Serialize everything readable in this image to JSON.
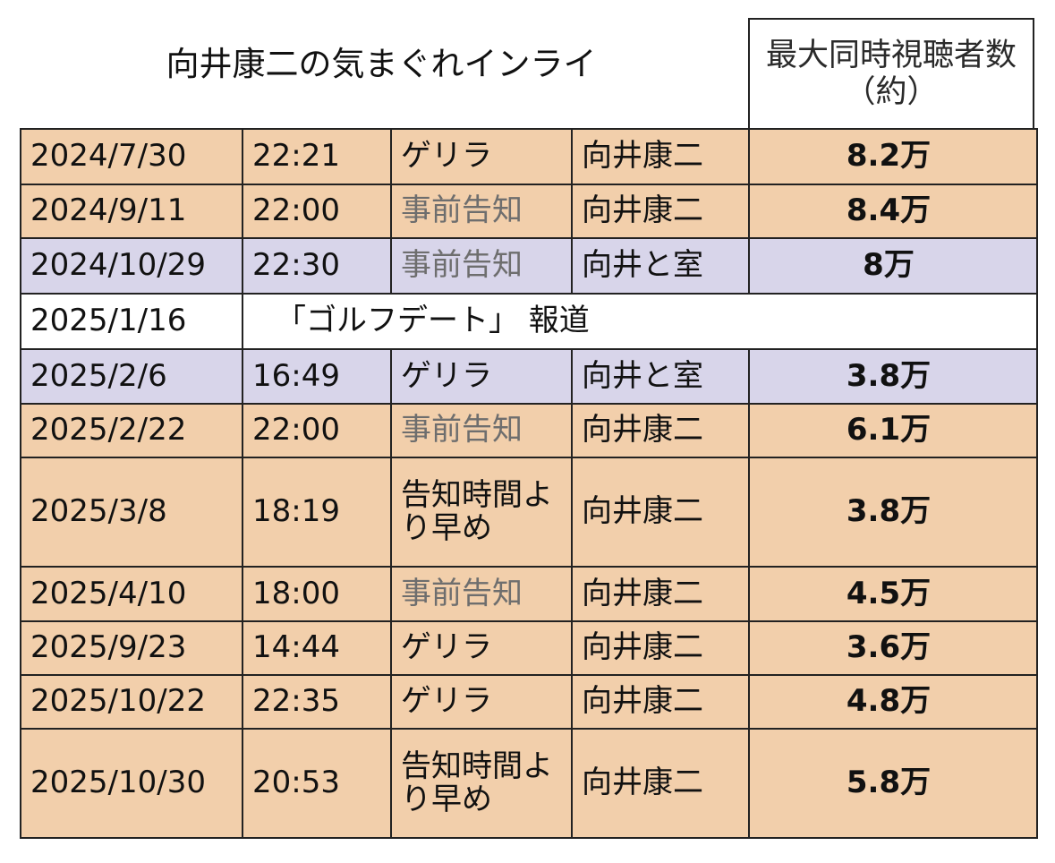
{
  "title": "向井康二の気まぐれインライ",
  "column_header": {
    "line1": "最大同時視聴者数",
    "line2": "（約）"
  },
  "colors": {
    "orange": "#f2cfab",
    "lavender": "#d8d5ea",
    "white": "#ffffff",
    "gray_text": "#6e6e6e"
  },
  "rows": [
    {
      "date": "2024/7/30",
      "time": "22:21",
      "type": "ゲリラ",
      "who": "向井康二",
      "viewers": "8.2万",
      "bg": "orange"
    },
    {
      "date": "2024/9/11",
      "time": "22:00",
      "type": "事前告知",
      "who": "向井康二",
      "viewers": "8.4万",
      "bg": "orange"
    },
    {
      "date": "2024/10/29",
      "time": "22:30",
      "type": "事前告知",
      "who": "向井と室",
      "viewers": "8万",
      "bg": "lavender"
    },
    {
      "date": "2025/1/16",
      "note": "「ゴルフデート」 報道",
      "bg": "white"
    },
    {
      "date": "2025/2/6",
      "time": "16:49",
      "type": "ゲリラ",
      "who": "向井と室",
      "viewers": "3.8万",
      "bg": "lavender"
    },
    {
      "date": "2025/2/22",
      "time": "22:00",
      "type": "事前告知",
      "who": "向井康二",
      "viewers": "6.1万",
      "bg": "orange"
    },
    {
      "date": "2025/3/8",
      "time": "18:19",
      "type": "告知時間より早め",
      "who": "向井康二",
      "viewers": "3.8万",
      "bg": "orange"
    },
    {
      "date": "2025/4/10",
      "time": "18:00",
      "type": "事前告知",
      "who": "向井康二",
      "viewers": "4.5万",
      "bg": "orange"
    },
    {
      "date": "2025/9/23",
      "time": "14:44",
      "type": "ゲリラ",
      "who": "向井康二",
      "viewers": "3.6万",
      "bg": "orange"
    },
    {
      "date": "2025/10/22",
      "time": "22:35",
      "type": "ゲリラ",
      "who": "向井康二",
      "viewers": "4.8万",
      "bg": "orange"
    },
    {
      "date": "2025/10/30",
      "time": "20:53",
      "type": "告知時間より早め",
      "who": "向井康二",
      "viewers": "5.8万",
      "bg": "orange"
    }
  ]
}
